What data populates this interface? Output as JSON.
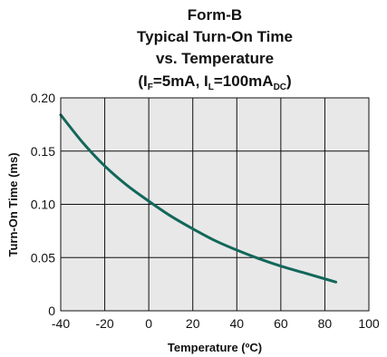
{
  "chart_data": {
    "type": "line",
    "title_lines": [
      "Form-B",
      "Typical Turn-On Time",
      "vs. Temperature"
    ],
    "condition": {
      "open": "(I",
      "sub1": "F",
      "mid": "=5mA, I",
      "sub2": "L",
      "mid2": "=100mA",
      "sub3": "DC",
      "close": ")"
    },
    "xlabel": "Temperature (ºC)",
    "ylabel": "Turn-On Time (ms)",
    "xlim": [
      -40,
      100
    ],
    "ylim": [
      0,
      0.2
    ],
    "x_ticks": [
      "-40",
      "-20",
      "0",
      "20",
      "40",
      "60",
      "80",
      "100"
    ],
    "y_ticks": [
      "0",
      "0.05",
      "0.10",
      "0.15",
      "0.20"
    ],
    "grid": true,
    "colors": {
      "plot_bg": "#e8e8e8",
      "line": "#12675a",
      "grid": "#111111"
    },
    "series": [
      {
        "x": [
          -40,
          -30,
          -20,
          -10,
          0,
          10,
          20,
          30,
          40,
          50,
          60,
          70,
          80,
          85
        ],
        "y": [
          0.184,
          0.158,
          0.136,
          0.118,
          0.103,
          0.089,
          0.077,
          0.066,
          0.057,
          0.049,
          0.042,
          0.036,
          0.03,
          0.027
        ]
      }
    ]
  }
}
